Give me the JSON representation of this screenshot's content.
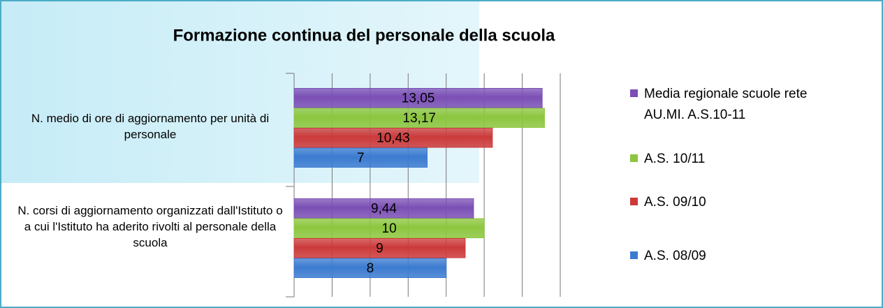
{
  "chart_data": {
    "type": "bar",
    "orientation": "horizontal",
    "title": "Formazione continua del personale della scuola",
    "categories": [
      "N. medio di ore di aggiornamento per unità di personale",
      "N. corsi di aggiornamento organizzati dall'Istituto o a cui l'Istituto ha aderito rivolti al personale della scuola"
    ],
    "series": [
      {
        "name": "Media regionale scuole rete AU.MI. A.S.10-11",
        "color": "#7b4fb5",
        "values": [
          13.05,
          9.44
        ],
        "value_labels": [
          "13,05",
          "9,44"
        ]
      },
      {
        "name": "A.S. 10/11",
        "color": "#8cc63e",
        "values": [
          13.17,
          10
        ],
        "value_labels": [
          "13,17",
          "10"
        ]
      },
      {
        "name": "A.S. 09/10",
        "color": "#cc3a3a",
        "values": [
          10.43,
          9
        ],
        "value_labels": [
          "10,43",
          "9"
        ]
      },
      {
        "name": "A.S. 08/09",
        "color": "#3b7bd0",
        "values": [
          7,
          8
        ],
        "value_labels": [
          "7",
          "8"
        ]
      }
    ],
    "xlim": [
      0,
      14
    ],
    "xticks": [
      0,
      2,
      4,
      6,
      8,
      10,
      12,
      14
    ],
    "grid": true,
    "legend": "right"
  }
}
